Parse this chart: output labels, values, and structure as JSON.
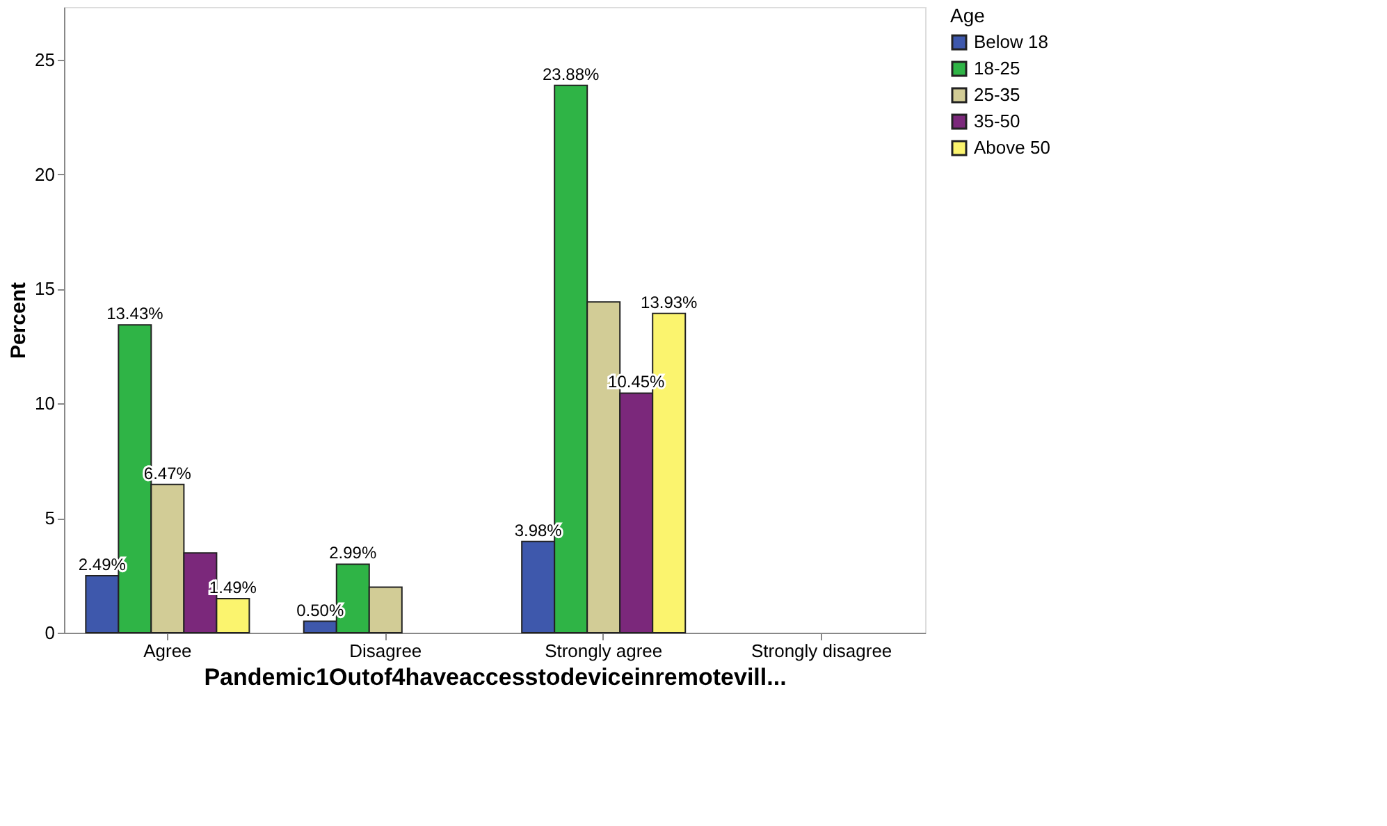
{
  "chart_data": {
    "type": "bar",
    "xlabel": "Pandemic1Outof4haveaccesstodeviceinremotevill...",
    "ylabel": "Percent",
    "legend_title": "Age",
    "categories": [
      "Agree",
      "Disagree",
      "Strongly agree",
      "Strongly disagree"
    ],
    "series": [
      {
        "name": "Below 18",
        "color": "#3e58ac",
        "values": [
          2.49,
          0.5,
          3.98,
          null
        ],
        "value_labels": [
          "2.49%",
          "0.50%",
          "3.98%",
          null
        ]
      },
      {
        "name": "18-25",
        "color": "#2fb446",
        "values": [
          13.43,
          2.99,
          23.88,
          null
        ],
        "value_labels": [
          "13.43%",
          "2.99%",
          "23.88%",
          null
        ]
      },
      {
        "name": "25-35",
        "color": "#d2cc96",
        "values": [
          6.47,
          1.99,
          14.43,
          null
        ],
        "value_labels": [
          "6.47%",
          null,
          null,
          null
        ]
      },
      {
        "name": "35-50",
        "color": "#7b287b",
        "values": [
          3.48,
          null,
          10.45,
          null
        ],
        "value_labels": [
          null,
          null,
          "10.45%",
          null
        ]
      },
      {
        "name": "Above 50",
        "color": "#fbf46e",
        "values": [
          1.49,
          null,
          13.93,
          null
        ],
        "value_labels": [
          "1.49%",
          null,
          "13.93%",
          null
        ]
      }
    ],
    "ylim": [
      0,
      27.3
    ],
    "yticks": [
      0,
      5,
      10,
      15,
      20,
      25
    ],
    "grid": false,
    "legend": "top right"
  }
}
